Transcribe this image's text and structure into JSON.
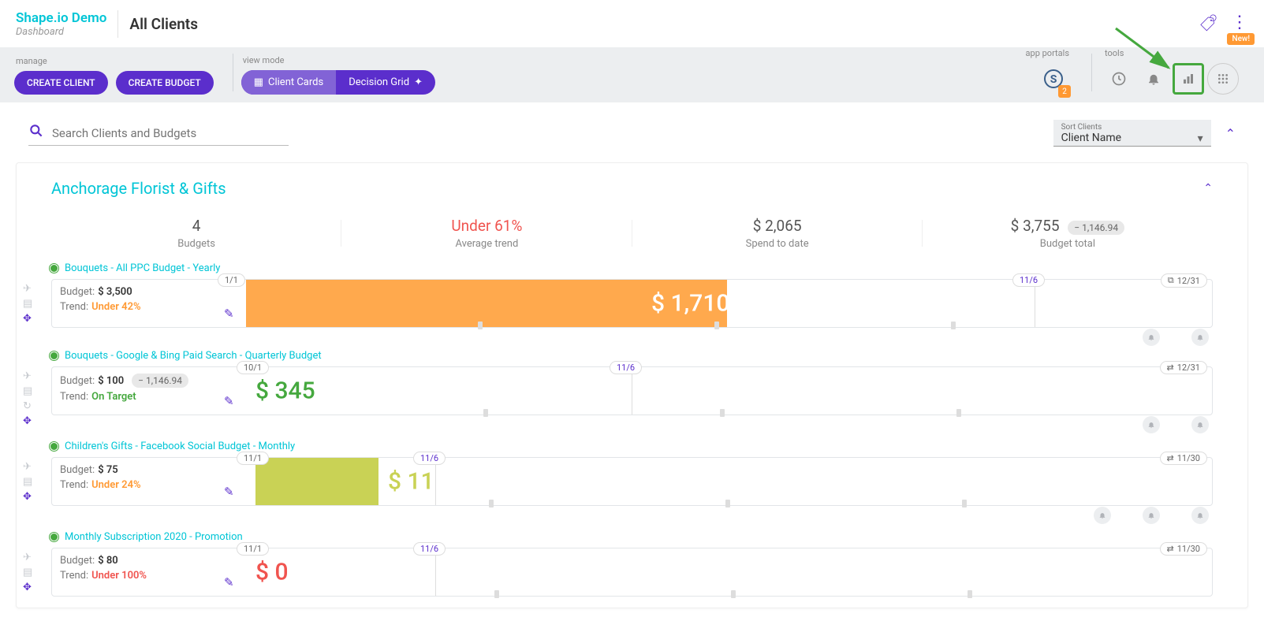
{
  "brand": {
    "name": "Shape.io Demo",
    "sub": "Dashboard"
  },
  "pageTitle": "All Clients",
  "newBadge": "New!",
  "toolbar": {
    "manageLabel": "manage",
    "createClient": "CREATE CLIENT",
    "createBudget": "CREATE BUDGET",
    "viewModeLabel": "view mode",
    "clientCards": "Client Cards",
    "decisionGrid": "Decision Grid",
    "appPortalsLabel": "app portals",
    "toolsLabel": "tools",
    "portalBadge": "2"
  },
  "search": {
    "placeholder": "Search Clients and Budgets"
  },
  "sort": {
    "label": "Sort Clients",
    "value": "Client Name"
  },
  "client": {
    "name": "Anchorage Florist & Gifts",
    "stats": {
      "budgetsCount": "4",
      "budgetsLabel": "Budgets",
      "avgTrend": "Under 61%",
      "avgTrendLabel": "Average trend",
      "spendToDate": "$ 2,065",
      "spendLabel": "Spend to date",
      "budgetTotal": "$ 3,755",
      "budgetTotalLabel": "Budget total",
      "budgetDelta": "− 1,146.94"
    },
    "budgets": [
      {
        "title": "Bouquets - All PPC Budget - Yearly",
        "budgetLabel": "Budget:",
        "budgetVal": "$ 3,500",
        "trendLabel": "Trend:",
        "trendVal": "Under 42%",
        "trendClass": "trend-under",
        "startDate": "1/1",
        "midDate": "11/6",
        "endDate": "12/31",
        "endIcon": "⧉",
        "spend": "$ 1,710",
        "spendClass": "white",
        "fillLeft": 246,
        "fillWidth": 610,
        "fillClass": "",
        "spendLeft": 760,
        "startChipLeft": 210,
        "midChipLeft": 1218,
        "midLineLeft": 1246,
        "bells": 2,
        "delta": ""
      },
      {
        "title": "Bouquets - Google & Bing Paid Search - Quarterly Budget",
        "budgetLabel": "Budget:",
        "budgetVal": "$ 100",
        "trendLabel": "Trend:",
        "trendVal": "On Target",
        "trendClass": "trend-on",
        "startDate": "10/1",
        "midDate": "11/6",
        "endDate": "12/31",
        "endIcon": "⇄",
        "spend": "$ 345",
        "spendClass": "green",
        "fillLeft": 0,
        "fillWidth": 0,
        "fillClass": "",
        "spendLeft": 258,
        "startChipLeft": 234,
        "midChipLeft": 707,
        "midLineLeft": 735,
        "bells": 2,
        "delta": "− 1,146.94"
      },
      {
        "title": "Children's Gifts - Facebook Social Budget - Monthly",
        "budgetLabel": "Budget:",
        "budgetVal": "$ 75",
        "trendLabel": "Trend:",
        "trendVal": "Under 24%",
        "trendClass": "trend-under",
        "startDate": "11/1",
        "midDate": "11/6",
        "endDate": "11/30",
        "endIcon": "⇄",
        "spend": "$ 11",
        "spendClass": "olive",
        "fillLeft": 258,
        "fillWidth": 156,
        "fillClass": "olive",
        "spendLeft": 426,
        "startChipLeft": 234,
        "midChipLeft": 458,
        "midLineLeft": 486,
        "bells": 3,
        "delta": ""
      },
      {
        "title": "Monthly Subscription 2020 - Promotion",
        "budgetLabel": "Budget:",
        "budgetVal": "$ 80",
        "trendLabel": "Trend:",
        "trendVal": "Under 100%",
        "trendClass": "trend-red",
        "startDate": "11/1",
        "midDate": "11/6",
        "endDate": "11/30",
        "endIcon": "⇄",
        "spend": "$ 0",
        "spendClass": "red",
        "fillLeft": 0,
        "fillWidth": 0,
        "fillClass": "",
        "spendLeft": 258,
        "startChipLeft": 234,
        "midChipLeft": 458,
        "midLineLeft": 486,
        "bells": 0,
        "delta": ""
      }
    ]
  },
  "colors": {
    "primary": "#5b2ecc",
    "teal": "#00c5d6",
    "orange": "#ff9933",
    "green": "#45a83e",
    "red": "#f0544f",
    "olive": "#c9d255",
    "amber": "#ffa94d"
  }
}
